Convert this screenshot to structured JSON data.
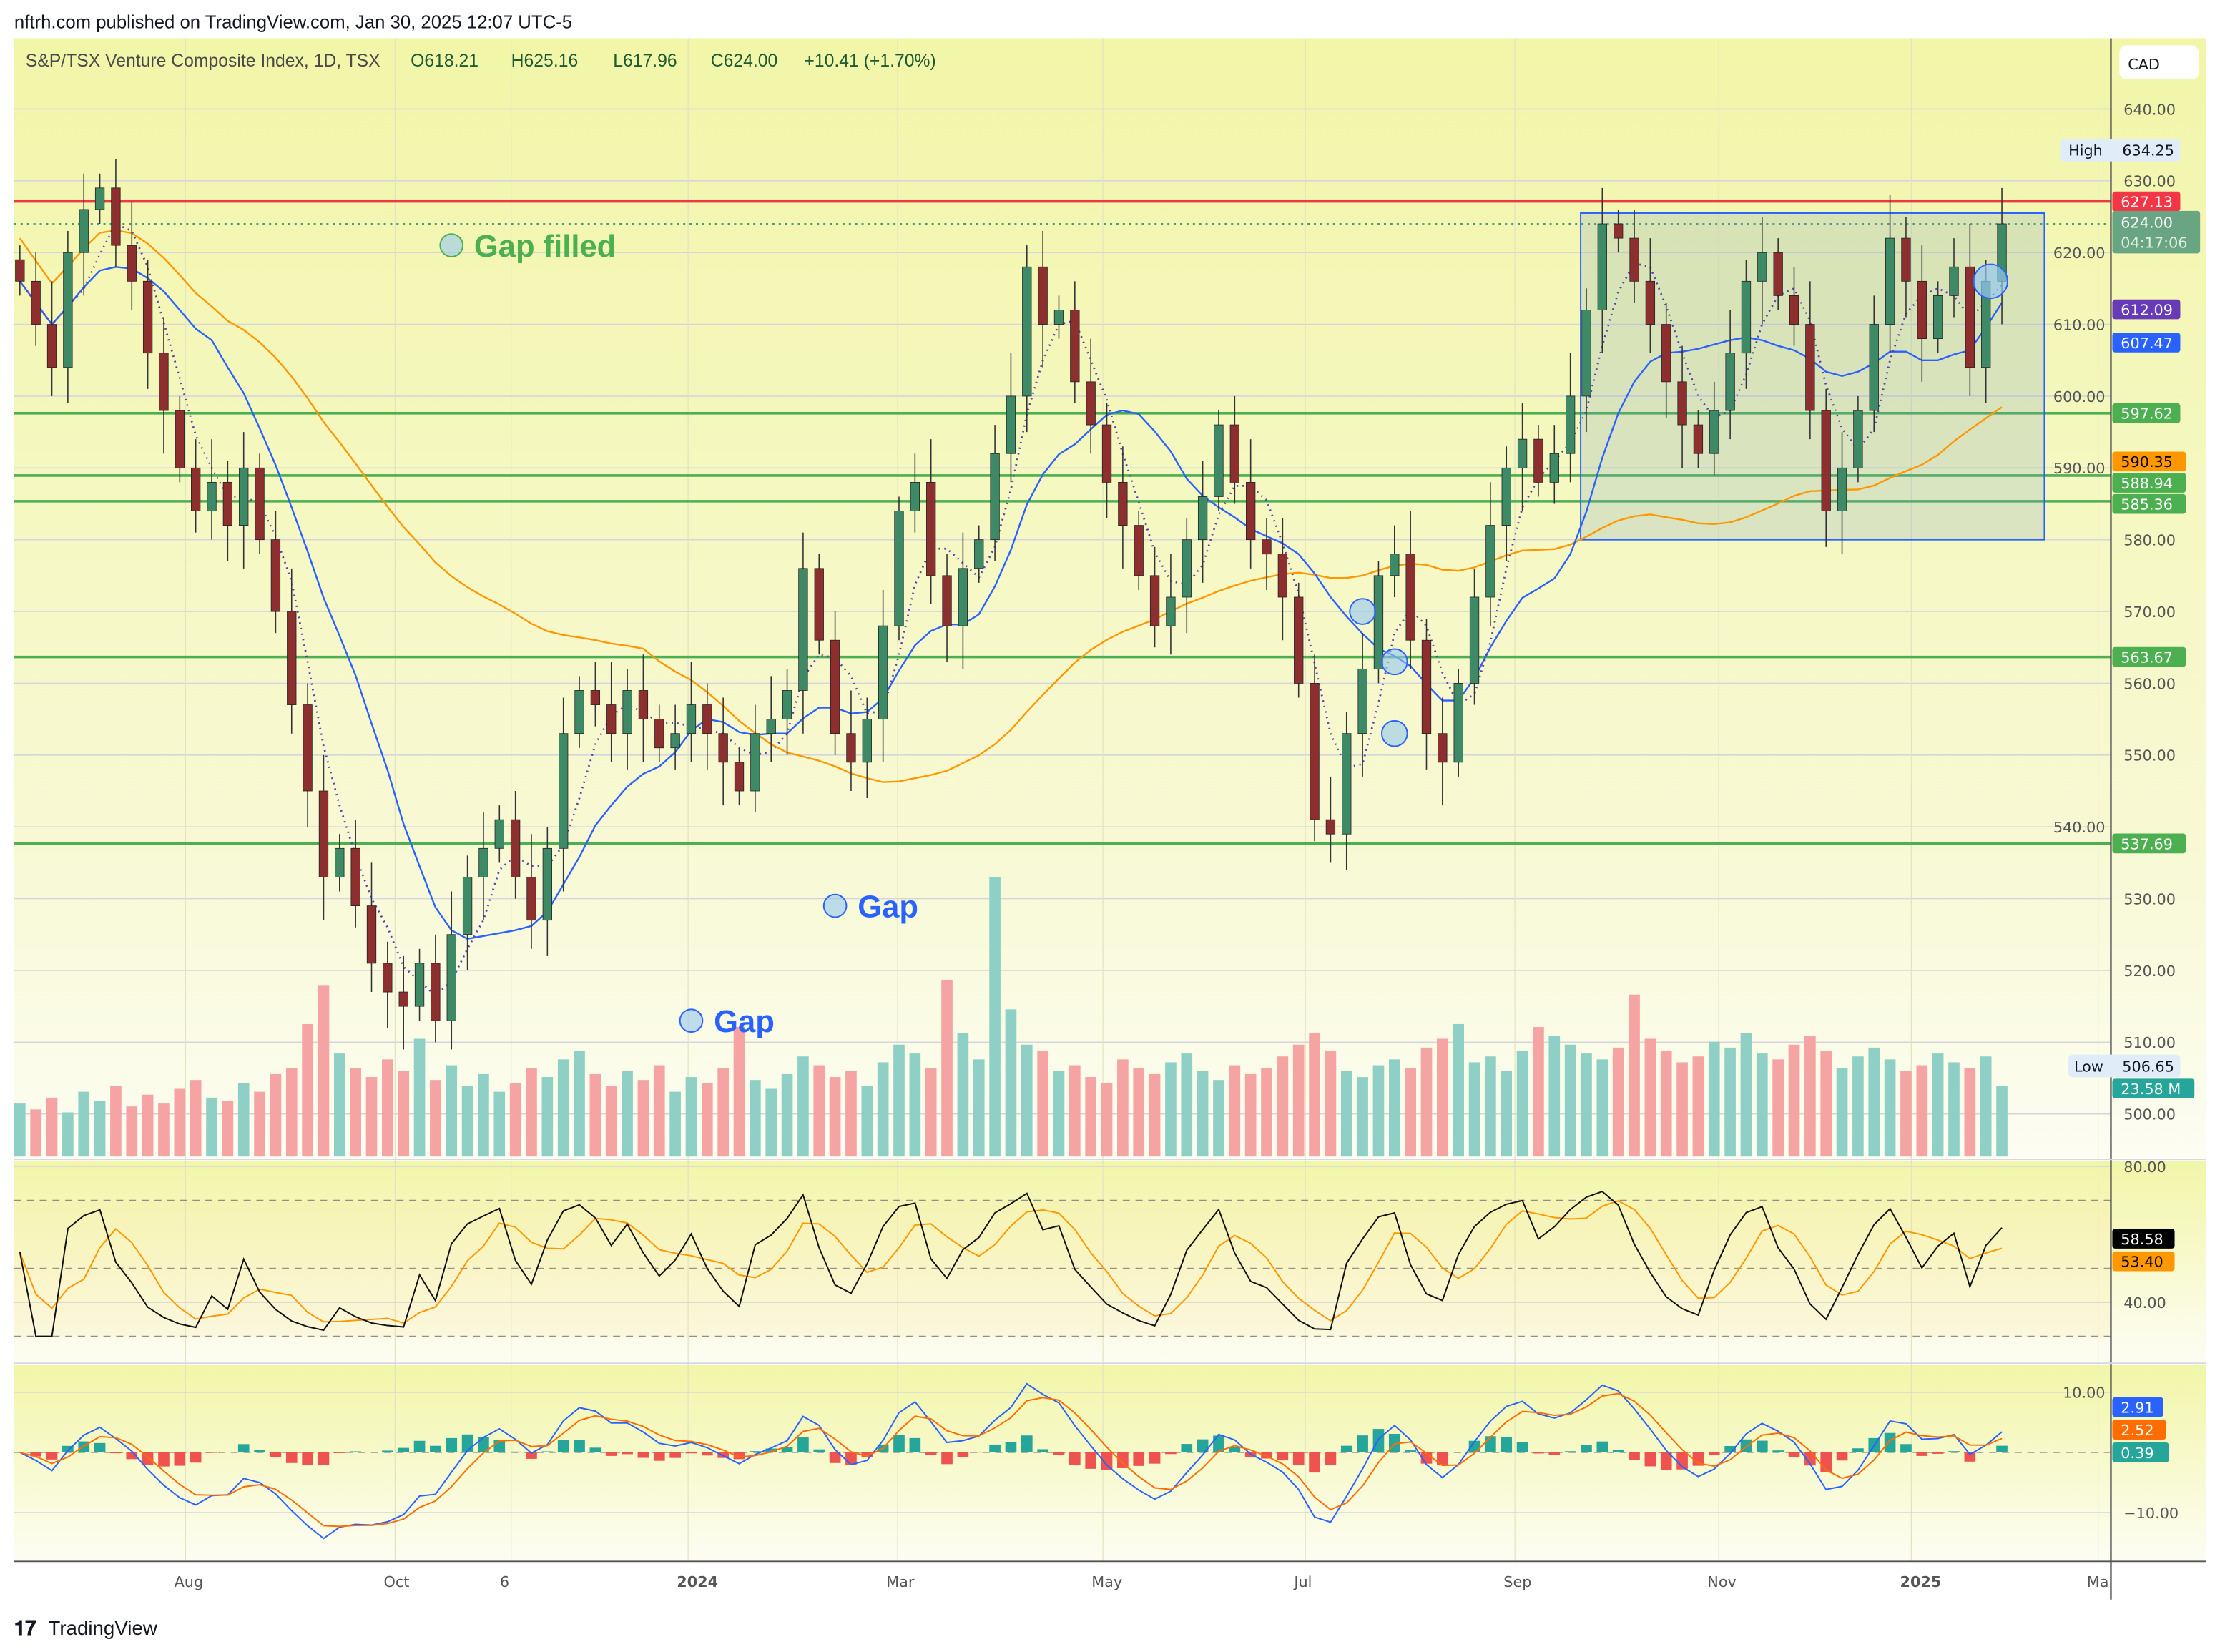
{
  "publisher": "nftrh.com published on TradingView.com, Jan 30, 2025 12:07 UTC-5",
  "legend": {
    "symbol": "S&P/TSX Venture Composite Index, 1D, TSX",
    "open": "O618.21",
    "high": "H625.16",
    "low": "L617.96",
    "close": "C624.00",
    "change": "+10.41 (+1.70%)"
  },
  "currency": "CAD",
  "footer_logo": "TradingView",
  "colors": {
    "up": "#3f8a66",
    "down": "#8e2f2f",
    "vol_up": "#8fd0c6",
    "vol_down": "#f5a3a3",
    "ma_fast": "#2962ff",
    "ma_slow": "#ff9800",
    "resistance": "#f23645",
    "support": "#4caf50",
    "background": "#f3f7b0"
  },
  "chart_data": {
    "type": "candlestick",
    "title": "S&P/TSX Venture Composite Index, 1D, TSX",
    "ylim": [
      495,
      645
    ],
    "y_ticks": [
      "640.00",
      "630.00",
      "620.00",
      "610.00",
      "600.00",
      "590.00",
      "580.00",
      "570.00",
      "560.00",
      "550.00",
      "540.00",
      "530.00",
      "520.00",
      "510.00",
      "500.00"
    ],
    "x_ticks": [
      "Aug",
      "Oct",
      "6",
      "2024",
      "Mar",
      "May",
      "Jul",
      "Sep",
      "Nov",
      "2025",
      "Ma"
    ],
    "closes": [
      616,
      610,
      604,
      620,
      626,
      629,
      621,
      616,
      606,
      598,
      590,
      584,
      588,
      582,
      590,
      580,
      570,
      557,
      545,
      533,
      537,
      529,
      521,
      517,
      515,
      521,
      513,
      525,
      533,
      537,
      541,
      533,
      527,
      537,
      553,
      559,
      557,
      553,
      559,
      555,
      551,
      553,
      557,
      553,
      549,
      545,
      553,
      555,
      559,
      576,
      566,
      553,
      549,
      555,
      568,
      584,
      588,
      575,
      568,
      576,
      580,
      592,
      600,
      618,
      610,
      612,
      602,
      596,
      588,
      582,
      575,
      568,
      572,
      580,
      586,
      596,
      588,
      580,
      578,
      572,
      560,
      541,
      539,
      553,
      562,
      575,
      578,
      566,
      553,
      549,
      560,
      572,
      582,
      590,
      594,
      588,
      592,
      600,
      612,
      624,
      622,
      616,
      610,
      602,
      596,
      592,
      598,
      606,
      616,
      620,
      614,
      610,
      598,
      584,
      590,
      598,
      610,
      622,
      616,
      608,
      614,
      618,
      604,
      616,
      624
    ],
    "volume_millions": [
      18,
      16,
      20,
      15,
      22,
      19,
      24,
      17,
      21,
      18,
      23,
      26,
      20,
      19,
      25,
      22,
      28,
      30,
      45,
      58,
      35,
      30,
      27,
      33,
      29,
      40,
      26,
      31,
      24,
      28,
      22,
      25,
      30,
      27,
      33,
      36,
      28,
      24,
      29,
      26,
      31,
      22,
      27,
      25,
      30,
      44,
      26,
      23,
      28,
      34,
      31,
      27,
      29,
      24,
      32,
      38,
      35,
      30,
      60,
      42,
      33,
      95,
      50,
      38,
      36,
      29,
      31,
      27,
      25,
      33,
      30,
      28,
      32,
      35,
      29,
      26,
      31,
      28,
      30,
      34,
      38,
      42,
      36,
      29,
      27,
      31,
      33,
      30,
      37,
      40,
      45,
      32,
      34,
      29,
      36,
      44,
      41,
      38,
      35,
      33,
      37,
      55,
      40,
      36,
      32,
      34,
      39,
      37,
      42,
      35,
      33,
      38,
      41,
      36,
      30,
      34,
      37,
      33,
      29,
      31,
      35,
      32,
      30,
      34,
      24
    ],
    "price_lines": [
      {
        "value": 627.13,
        "label": "627.13",
        "kind": "resistance"
      },
      {
        "value": 597.62,
        "label": "597.62",
        "kind": "support"
      },
      {
        "value": 588.94,
        "label": "588.94",
        "kind": "support"
      },
      {
        "value": 585.36,
        "label": "585.36",
        "kind": "support"
      },
      {
        "value": 563.67,
        "label": "563.67",
        "kind": "support"
      },
      {
        "value": 537.69,
        "label": "537.69",
        "kind": "support"
      }
    ],
    "axis_labels": {
      "high_label": "High",
      "high_value": "634.25",
      "low_label": "Low",
      "low_value": "506.65",
      "last_price": "624.00",
      "countdown": "04:17:06",
      "ma_short": "612.09",
      "ma_fast": "607.47",
      "ma_slow": "590.35",
      "volume": "23.58 M"
    },
    "range_box": {
      "from_index": 98,
      "to_index": 124,
      "low": 580,
      "high": 625.5
    },
    "annotations": [
      {
        "text": "Gap filled",
        "index": 27,
        "price": 621,
        "color": "#4caf50"
      },
      {
        "text": "Gap",
        "index": 51,
        "price": 529,
        "color": "#2962ff"
      },
      {
        "text": "Gap",
        "index": 42,
        "price": 513,
        "color": "#2962ff"
      }
    ],
    "rsi": {
      "ylim": [
        25,
        85
      ],
      "ticks": [
        "80.00",
        "40.00"
      ],
      "bands": [
        70,
        50,
        30
      ],
      "value": "58.58",
      "signal": "53.40"
    },
    "macd": {
      "ylim": [
        -17,
        20
      ],
      "ticks": [
        "10.00",
        "−10.00"
      ],
      "macd": "2.91",
      "signal": "2.52",
      "histogram": "0.39"
    }
  }
}
